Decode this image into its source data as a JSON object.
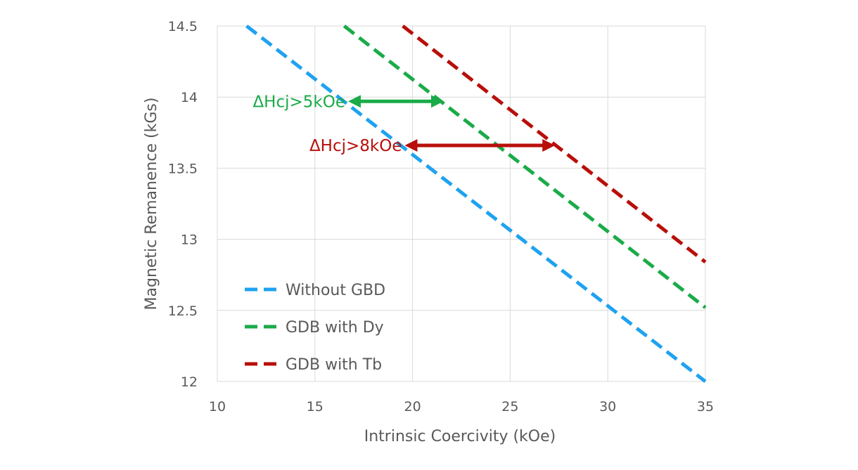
{
  "chart_data": {
    "type": "line",
    "title": "",
    "xlabel": "Intrinsic Coercivity (kOe)",
    "ylabel": "Magnetic Remanence (kGs)",
    "xlim": [
      10,
      35
    ],
    "ylim": [
      12,
      14.5
    ],
    "xticks": [
      "10",
      "15",
      "20",
      "25",
      "30",
      "35"
    ],
    "yticks": [
      "12",
      "12.5",
      "13",
      "13.5",
      "14",
      "14.5"
    ],
    "grid": true,
    "legend_position": "bottom-left",
    "series": [
      {
        "name": "Without GBD",
        "color": "#1fa2f0",
        "line_style": "dashed",
        "x": [
          11.5,
          35
        ],
        "y": [
          14.5,
          12.0
        ]
      },
      {
        "name": "GDB with Dy",
        "color": "#1aab48",
        "line_style": "dashed",
        "x": [
          16.5,
          35
        ],
        "y": [
          14.5,
          12.52
        ]
      },
      {
        "name": "GDB with Tb",
        "color": "#b80f0a",
        "line_style": "dashed",
        "x": [
          19.5,
          35
        ],
        "y": [
          14.5,
          12.84
        ]
      }
    ],
    "annotations": [
      {
        "text": "ΔHcj>5kOe",
        "color": "#1aab48",
        "x_start": 16.7,
        "x_end": 21.6,
        "y": 13.97
      },
      {
        "text": "ΔHcj>8kOe",
        "color": "#b80f0a",
        "x_start": 19.6,
        "x_end": 27.3,
        "y": 13.66
      }
    ]
  }
}
